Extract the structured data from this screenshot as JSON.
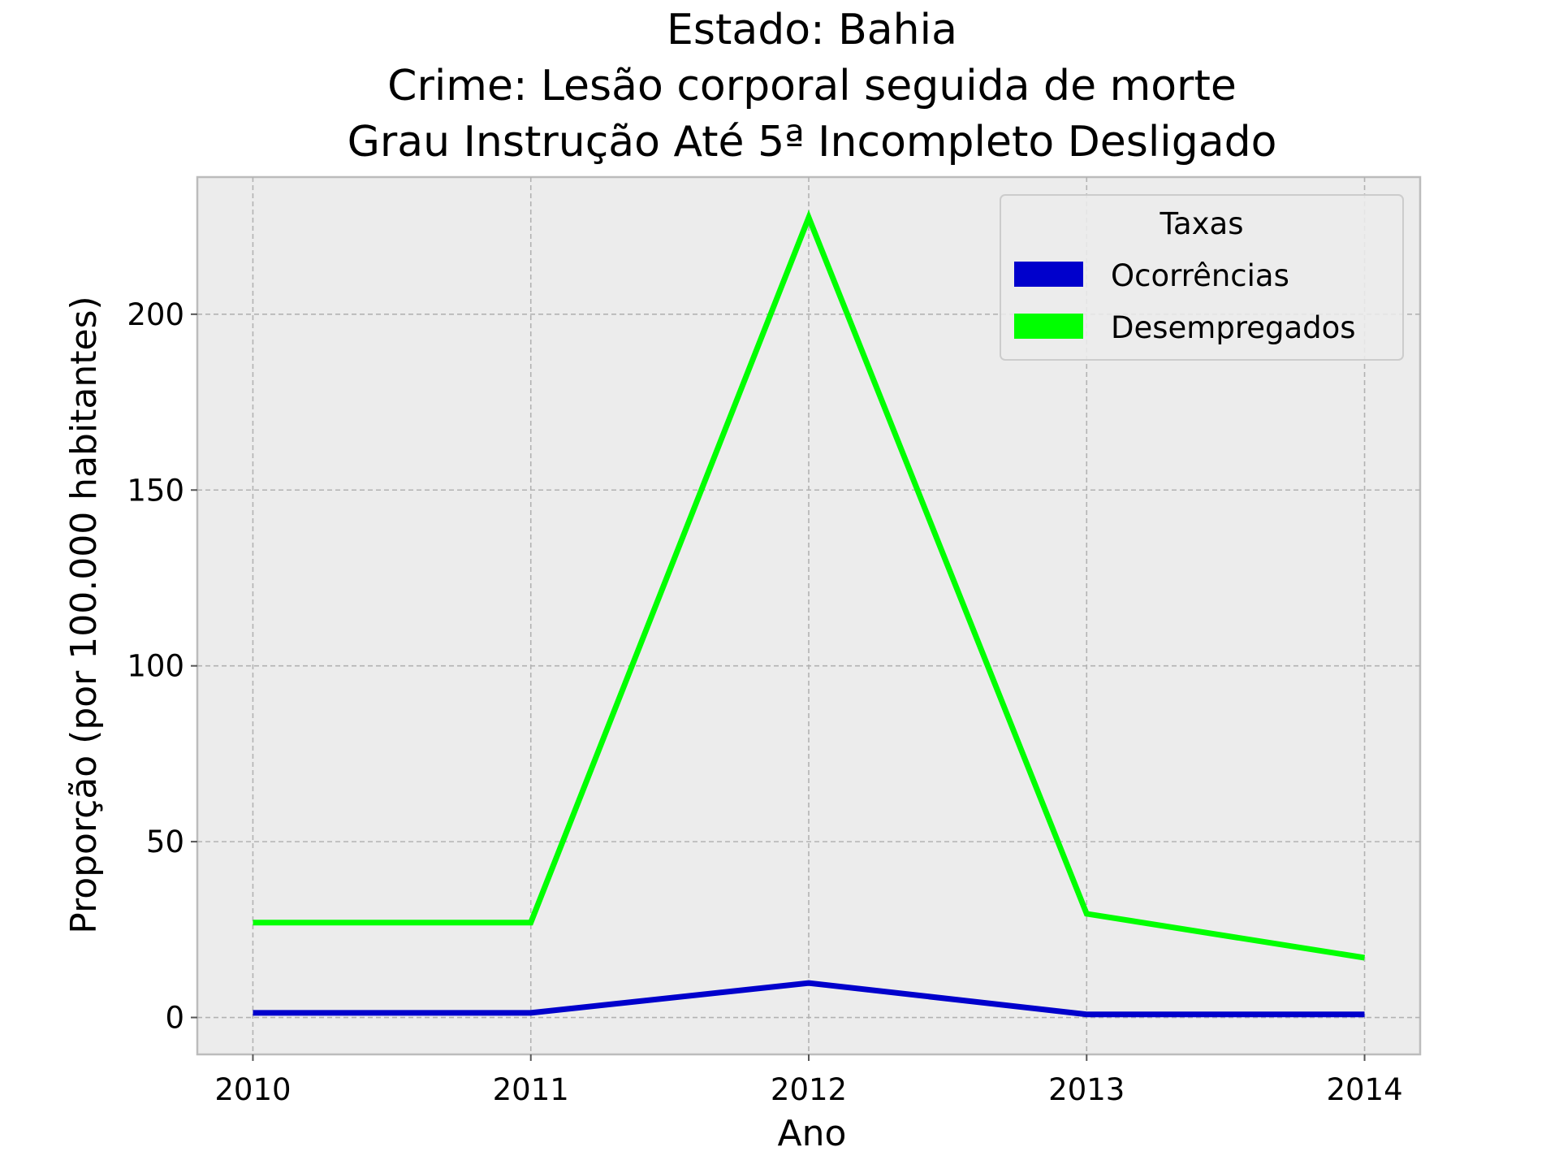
{
  "chart_data": {
    "type": "line",
    "title_lines": [
      "Estado: Bahia",
      "Crime: Lesão corporal seguida de morte",
      "Grau Instrução  Até 5ª Incompleto   Desligado"
    ],
    "xlabel": "Ano",
    "ylabel": "Proporção (por 100.000 habitantes)",
    "x": [
      2010,
      2011,
      2012,
      2013,
      2014
    ],
    "x_tick_labels": [
      "2010",
      "2011",
      "2012",
      "2013",
      "2014"
    ],
    "y_ticks": [
      0,
      50,
      100,
      150,
      200
    ],
    "y_tick_labels": [
      "0",
      "50",
      "100",
      "150",
      "200"
    ],
    "xlim": [
      2009.8,
      2014.2
    ],
    "ylim": [
      -10.5,
      239
    ],
    "grid": true,
    "legend": {
      "title": "Taxas",
      "position": "top-right"
    },
    "series": [
      {
        "name": "Ocorrências",
        "color": "#0000cc",
        "values": [
          1.3,
          1.3,
          9.8,
          0.9,
          0.9
        ]
      },
      {
        "name": "Desempregados",
        "color": "#00ff00",
        "values": [
          27,
          27,
          227.5,
          29.5,
          17
        ]
      }
    ]
  }
}
